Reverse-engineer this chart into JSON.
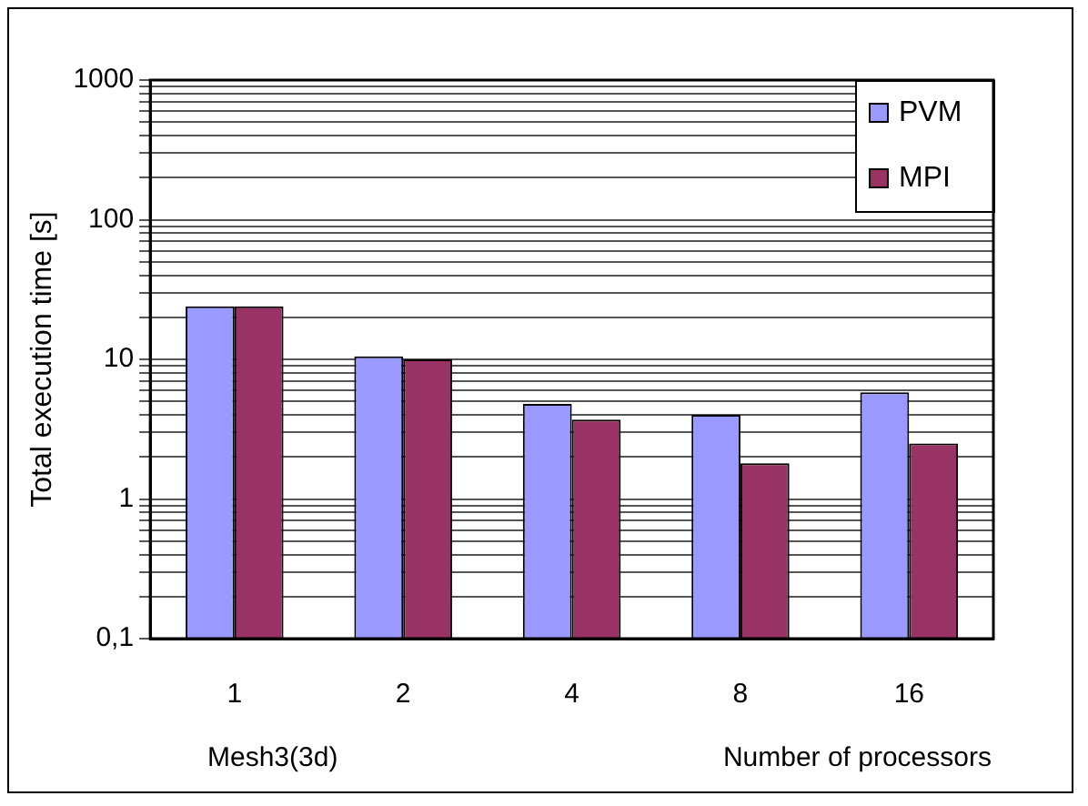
{
  "chart_data": {
    "type": "bar",
    "categories": [
      "1",
      "2",
      "4",
      "8",
      "16"
    ],
    "series": [
      {
        "name": "PVM",
        "color": "#9999ff",
        "values": [
          24,
          10.5,
          4.8,
          4,
          5.8
        ]
      },
      {
        "name": "MPI",
        "color": "#993366",
        "values": [
          24,
          10,
          3.7,
          1.8,
          2.5
        ]
      }
    ],
    "ylabel": "Total execution time [s]",
    "xlabel": "Number of processors",
    "annotations": [
      "Mesh3(3d)"
    ],
    "log": "y",
    "ylim": [
      0.1,
      1000
    ],
    "yticks": [
      {
        "value": 0.1,
        "label": "0,1"
      },
      {
        "value": 0.2,
        "label": null
      },
      {
        "value": 0.3,
        "label": null
      },
      {
        "value": 0.4,
        "label": null
      },
      {
        "value": 0.5,
        "label": null
      },
      {
        "value": 0.6,
        "label": null
      },
      {
        "value": 0.7,
        "label": null
      },
      {
        "value": 0.8,
        "label": null
      },
      {
        "value": 0.9,
        "label": null
      },
      1,
      {
        "value": 2,
        "label": null
      },
      {
        "value": 3,
        "label": null
      },
      {
        "value": 4,
        "label": null
      },
      {
        "value": 5,
        "label": null
      },
      {
        "value": 6,
        "label": null
      },
      {
        "value": 7,
        "label": null
      },
      {
        "value": 8,
        "label": null
      },
      {
        "value": 9,
        "label": null
      },
      10,
      {
        "value": 20,
        "label": null
      },
      {
        "value": 30,
        "label": null
      },
      {
        "value": 40,
        "label": null
      },
      {
        "value": 50,
        "label": null
      },
      {
        "value": 60,
        "label": null
      },
      {
        "value": 70,
        "label": null
      },
      {
        "value": 80,
        "label": null
      },
      {
        "value": 90,
        "label": null
      },
      100,
      {
        "value": 200,
        "label": null
      },
      {
        "value": 300,
        "label": null
      },
      {
        "value": 400,
        "label": null
      },
      {
        "value": 500,
        "label": null
      },
      {
        "value": 600,
        "label": null
      },
      {
        "value": 700,
        "label": null
      },
      {
        "value": 800,
        "label": null
      },
      {
        "value": 900,
        "label": null
      },
      1000
    ],
    "grid": "y",
    "legend": "top right"
  }
}
